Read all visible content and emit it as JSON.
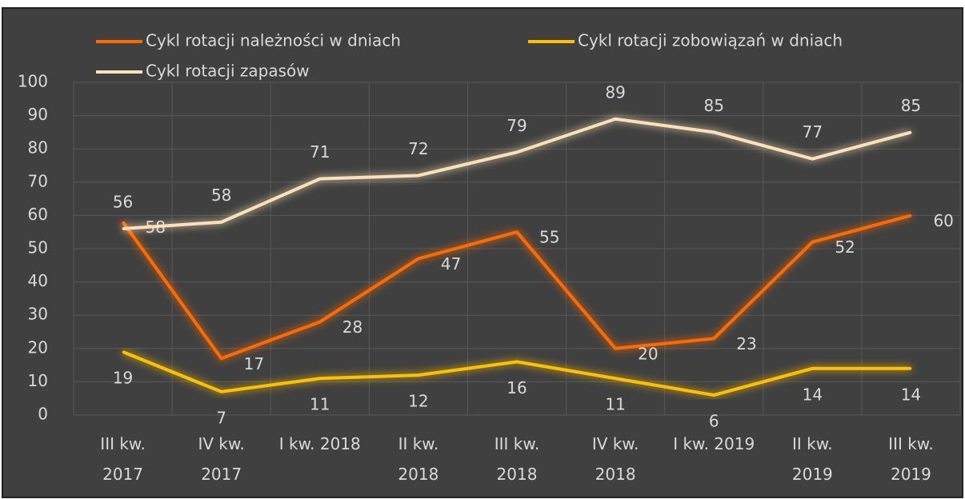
{
  "chart_data": {
    "type": "line",
    "categories": [
      "III kw.\n2017",
      "IV kw.\n2017",
      "I kw. 2018",
      "II kw.\n2018",
      "III kw.\n2018",
      "IV kw.\n2018",
      "I kw. 2019",
      "II kw.\n2019",
      "III kw.\n2019"
    ],
    "series": [
      {
        "name": "Cykl rotacji należności w dniach",
        "color": "#ff6a00",
        "values": [
          58,
          17,
          28,
          47,
          55,
          20,
          23,
          52,
          60
        ]
      },
      {
        "name": "Cykl rotacji zobowiązań w dniach",
        "color": "#ffc000",
        "values": [
          19,
          7,
          11,
          12,
          16,
          11,
          6,
          14,
          14
        ]
      },
      {
        "name": "Cykl rotacji zapasów",
        "color": "#fbe0b8",
        "values": [
          56,
          58,
          71,
          72,
          79,
          89,
          85,
          77,
          85
        ]
      }
    ],
    "ylim": [
      0,
      100
    ],
    "yticks": [
      0,
      10,
      20,
      30,
      40,
      50,
      60,
      70,
      80,
      90,
      100
    ],
    "grid": true,
    "legend": "top"
  }
}
